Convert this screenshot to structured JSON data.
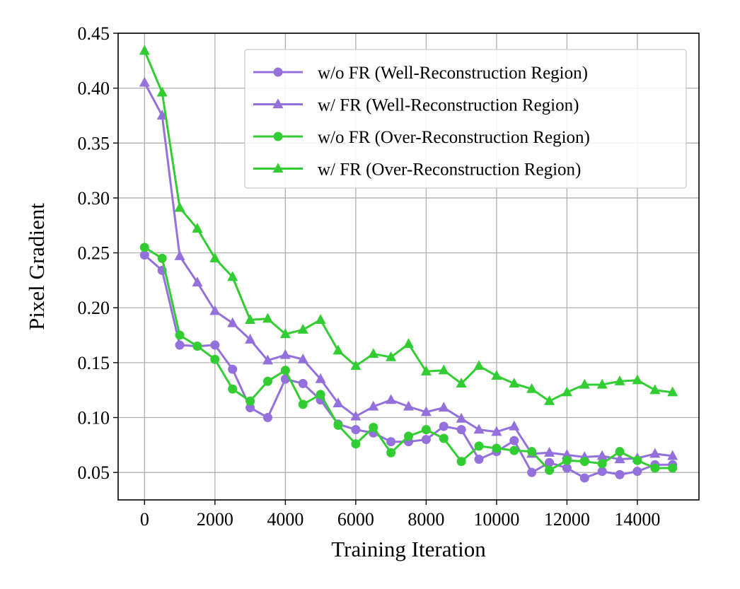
{
  "chart_data": {
    "type": "line",
    "title": "",
    "xlabel": "Training Iteration",
    "ylabel": "Pixel Gradient",
    "xlim": [
      -750,
      15750
    ],
    "ylim": [
      0.025,
      0.45
    ],
    "xticks": [
      0,
      2000,
      4000,
      6000,
      8000,
      10000,
      12000,
      14000
    ],
    "xtick_labels": [
      "0",
      "2000",
      "4000",
      "6000",
      "8000",
      "10000",
      "12000",
      "14000"
    ],
    "yticks": [
      0.05,
      0.1,
      0.15,
      0.2,
      0.25,
      0.3,
      0.35,
      0.4,
      0.45
    ],
    "ytick_labels": [
      "0.05",
      "0.10",
      "0.15",
      "0.20",
      "0.25",
      "0.30",
      "0.35",
      "0.40",
      "0.45"
    ],
    "grid": true,
    "legend_position": "top-right",
    "x": [
      0,
      500,
      1000,
      1500,
      2000,
      2500,
      3000,
      3500,
      4000,
      4500,
      5000,
      5500,
      6000,
      6500,
      7000,
      7500,
      8000,
      8500,
      9000,
      9500,
      10000,
      10500,
      11000,
      11500,
      12000,
      12500,
      13000,
      13500,
      14000,
      14500,
      15000
    ],
    "series": [
      {
        "name": "w/o FR (Well-Reconstruction Region)",
        "color": "#9370db",
        "marker": "circle",
        "values": [
          0.248,
          0.234,
          0.166,
          0.165,
          0.166,
          0.144,
          0.109,
          0.1,
          0.135,
          0.131,
          0.116,
          0.094,
          0.089,
          0.086,
          0.078,
          0.078,
          0.08,
          0.092,
          0.089,
          0.062,
          0.069,
          0.079,
          0.05,
          0.059,
          0.054,
          0.045,
          0.051,
          0.048,
          0.051,
          0.057,
          0.057
        ]
      },
      {
        "name": "w/ FR (Well-Reconstruction Region)",
        "color": "#9370db",
        "marker": "triangle",
        "values": [
          0.405,
          0.375,
          0.247,
          0.223,
          0.197,
          0.186,
          0.171,
          0.152,
          0.157,
          0.153,
          0.135,
          0.113,
          0.101,
          0.11,
          0.116,
          0.11,
          0.105,
          0.109,
          0.099,
          0.089,
          0.087,
          0.092,
          0.067,
          0.068,
          0.066,
          0.064,
          0.065,
          0.062,
          0.063,
          0.067,
          0.065
        ]
      },
      {
        "name": "w/o FR (Over-Reconstruction Region)",
        "color": "#32cd32",
        "marker": "circle",
        "values": [
          0.255,
          0.245,
          0.175,
          0.165,
          0.153,
          0.126,
          0.115,
          0.133,
          0.143,
          0.112,
          0.121,
          0.093,
          0.076,
          0.091,
          0.068,
          0.083,
          0.089,
          0.081,
          0.06,
          0.074,
          0.072,
          0.07,
          0.069,
          0.052,
          0.061,
          0.06,
          0.058,
          0.069,
          0.061,
          0.054,
          0.054
        ]
      },
      {
        "name": "w/ FR (Over-Reconstruction Region)",
        "color": "#32cd32",
        "marker": "triangle",
        "values": [
          0.434,
          0.396,
          0.291,
          0.272,
          0.245,
          0.228,
          0.189,
          0.19,
          0.176,
          0.18,
          0.189,
          0.161,
          0.147,
          0.158,
          0.155,
          0.167,
          0.142,
          0.143,
          0.131,
          0.147,
          0.138,
          0.131,
          0.126,
          0.115,
          0.123,
          0.13,
          0.13,
          0.133,
          0.134,
          0.125,
          0.123
        ]
      }
    ]
  }
}
